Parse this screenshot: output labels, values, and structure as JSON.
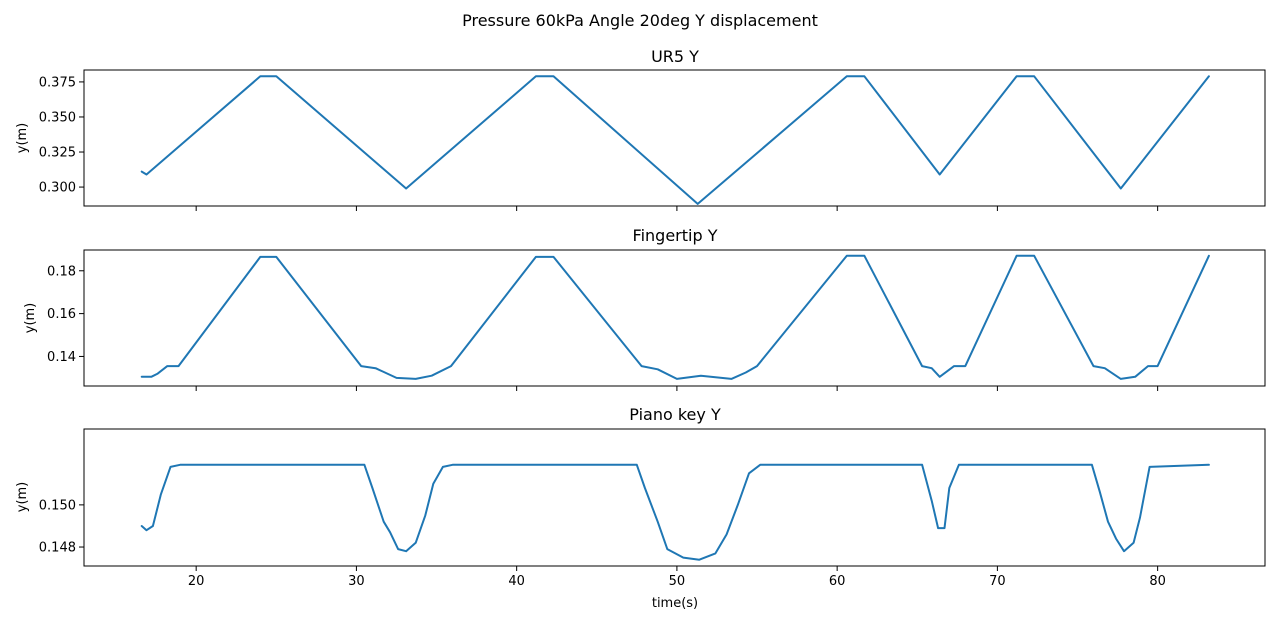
{
  "chart_data": {
    "type": "line",
    "suptitle": "Pressure 60kPa Angle 20deg Y displacement",
    "xlabel": "time(s)",
    "xlim": [
      13,
      86.7
    ],
    "xticks": [
      20,
      30,
      40,
      50,
      60,
      70,
      80
    ],
    "series_color": "#1f77b4",
    "panels": [
      {
        "title": "UR5 Y",
        "ylabel": "y(m)",
        "ylim": [
          0.2865,
          0.3835
        ],
        "yticks": [
          0.3,
          0.325,
          0.35,
          0.375
        ],
        "ytick_labels": [
          "0.300",
          "0.325",
          "0.350",
          "0.375"
        ],
        "x": [
          16.6,
          16.9,
          24.0,
          25.0,
          33.1,
          41.2,
          42.3,
          51.3,
          60.6,
          61.7,
          66.4,
          71.2,
          72.3,
          77.7,
          83.2
        ],
        "y": [
          0.311,
          0.309,
          0.379,
          0.379,
          0.299,
          0.379,
          0.379,
          0.288,
          0.379,
          0.379,
          0.309,
          0.379,
          0.379,
          0.299,
          0.379
        ]
      },
      {
        "title": "Fingertip Y",
        "ylabel": "y(m)",
        "ylim": [
          0.1262,
          0.1897
        ],
        "yticks": [
          0.14,
          0.16,
          0.18
        ],
        "ytick_labels": [
          "0.14",
          "0.16",
          "0.18"
        ],
        "x": [
          16.6,
          17.2,
          17.6,
          18.2,
          18.9,
          24.0,
          25.0,
          30.3,
          31.2,
          32.5,
          33.7,
          34.7,
          35.9,
          41.2,
          42.3,
          47.8,
          48.8,
          50.0,
          51.5,
          53.4,
          54.3,
          55.0,
          60.6,
          61.7,
          65.3,
          65.9,
          66.4,
          67.3,
          68.0,
          71.2,
          72.3,
          76.0,
          76.7,
          77.7,
          78.6,
          79.4,
          80.0,
          83.2
        ],
        "y": [
          0.1305,
          0.1305,
          0.132,
          0.1355,
          0.1355,
          0.1865,
          0.1865,
          0.1355,
          0.1345,
          0.13,
          0.1295,
          0.131,
          0.1355,
          0.1865,
          0.1865,
          0.1355,
          0.134,
          0.1295,
          0.131,
          0.1295,
          0.1325,
          0.1355,
          0.187,
          0.187,
          0.1355,
          0.1345,
          0.1305,
          0.1355,
          0.1355,
          0.187,
          0.187,
          0.1355,
          0.1345,
          0.1295,
          0.1305,
          0.1355,
          0.1355,
          0.187
        ]
      },
      {
        "title": "Piano key Y",
        "ylabel": "y(m)",
        "ylim": [
          0.1471,
          0.1536
        ],
        "yticks": [
          0.148,
          0.15
        ],
        "ytick_labels": [
          "0.148",
          "0.150"
        ],
        "x": [
          16.6,
          16.9,
          17.3,
          17.8,
          18.4,
          19.0,
          30.5,
          31.0,
          31.7,
          32.1,
          32.6,
          33.1,
          33.7,
          34.3,
          34.8,
          35.4,
          36.0,
          47.5,
          48.0,
          48.8,
          49.4,
          50.4,
          51.4,
          52.4,
          53.1,
          53.8,
          54.5,
          55.2,
          65.3,
          65.9,
          66.3,
          66.7,
          67.0,
          67.6,
          75.9,
          76.4,
          76.9,
          77.4,
          77.9,
          78.5,
          78.9,
          79.5,
          83.2
        ],
        "y": [
          0.149,
          0.1488,
          0.149,
          0.1505,
          0.1518,
          0.1519,
          0.1519,
          0.1508,
          0.1492,
          0.1487,
          0.1479,
          0.1478,
          0.1482,
          0.1495,
          0.151,
          0.1518,
          0.1519,
          0.1519,
          0.1508,
          0.1492,
          0.1479,
          0.1475,
          0.1474,
          0.1477,
          0.1486,
          0.15,
          0.1515,
          0.1519,
          0.1519,
          0.1502,
          0.1489,
          0.1489,
          0.1508,
          0.1519,
          0.1519,
          0.1506,
          0.1492,
          0.1484,
          0.1478,
          0.1482,
          0.1494,
          0.1518,
          0.1519
        ]
      }
    ]
  }
}
